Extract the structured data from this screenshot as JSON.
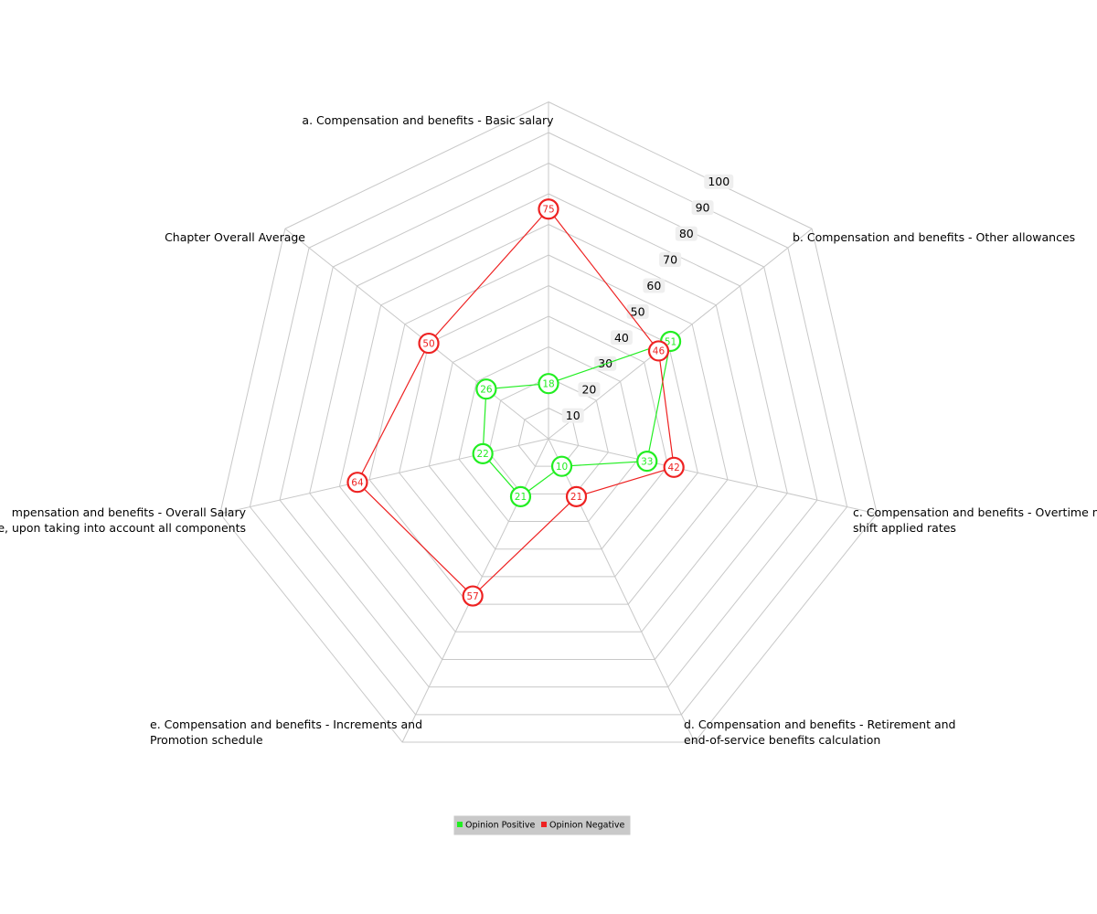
{
  "chart_data": {
    "type": "radar",
    "axes": [
      [
        "a. Compensation and benefits - Basic salary"
      ],
      [
        "b. Compensation and benefits - Other allowances"
      ],
      [
        "c. Compensation and benefits - Overtime  n",
        "shift applied rates"
      ],
      [
        "d. Compensation and benefits - Retirement and",
        "end-of-service benefits calculation"
      ],
      [
        "e. Compensation and benefits - Increments and",
        "Promotion schedule"
      ],
      [
        "mpensation and benefits - Overall Salary",
        "ge, upon taking into account all components"
      ],
      [
        "Chapter Overall Average"
      ]
    ],
    "r_ticks": [
      "10",
      "20",
      "30",
      "40",
      "50",
      "60",
      "70",
      "80",
      "90",
      "100"
    ],
    "r_range": [
      0,
      100
    ],
    "series": [
      {
        "name": "Opinion Positive",
        "color": "#22ee22",
        "values": [
          18,
          51,
          33,
          10,
          21,
          22,
          26
        ]
      },
      {
        "name": "Opinion Negative",
        "color": "#ee2222",
        "values": [
          75,
          46,
          42,
          21,
          57,
          64,
          50
        ]
      }
    ],
    "legend_position": "bottom"
  }
}
